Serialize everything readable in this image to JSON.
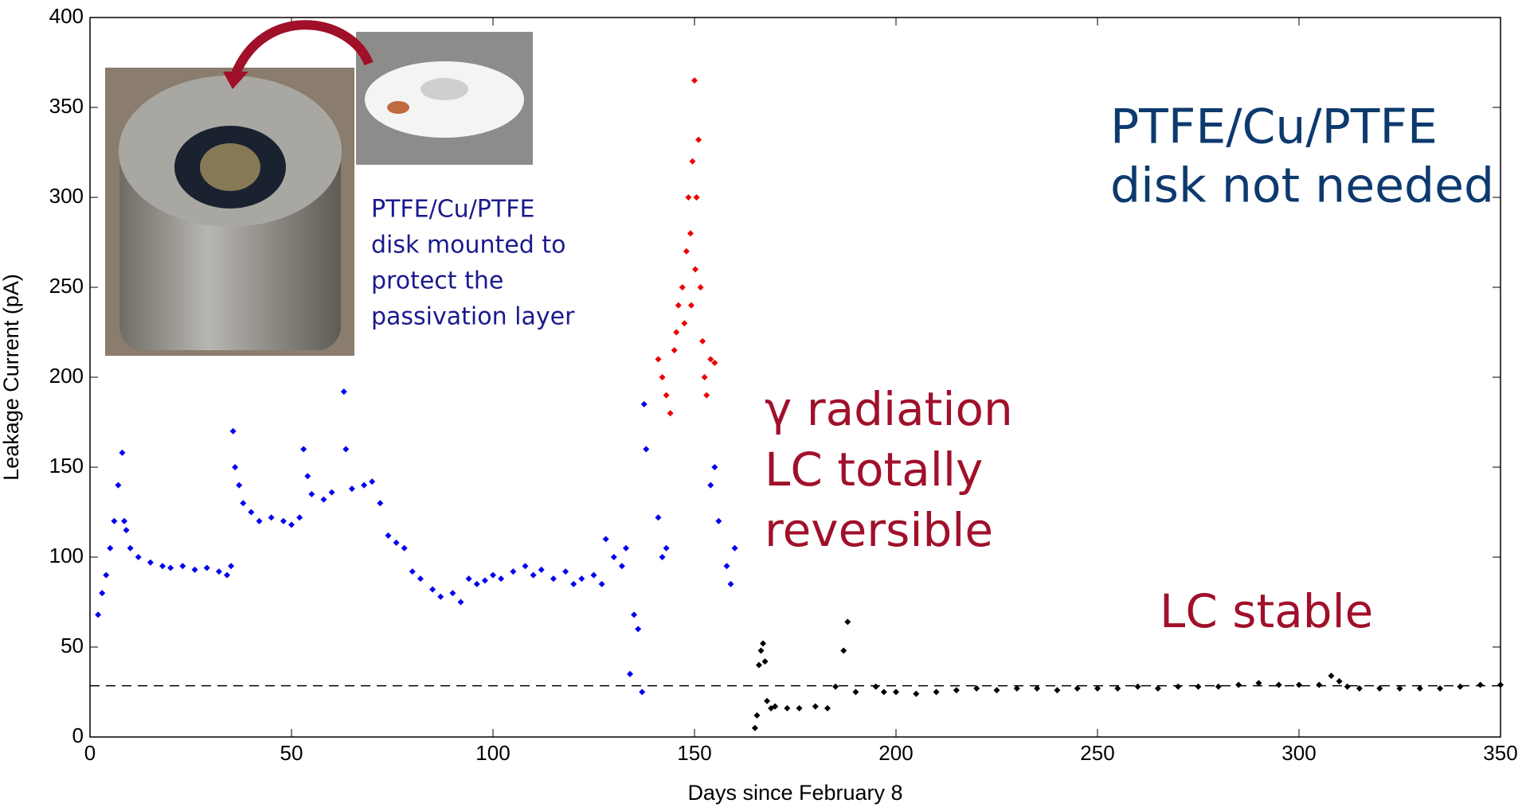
{
  "chart_data": {
    "type": "scatter",
    "xlabel": "Days since February 8",
    "ylabel": "Leakage Current (pA)",
    "xlim": [
      0,
      350
    ],
    "ylim": [
      0,
      400
    ],
    "xticks": [
      0,
      50,
      100,
      150,
      200,
      250,
      300,
      350
    ],
    "yticks": [
      0,
      50,
      100,
      150,
      200,
      250,
      300,
      350,
      400
    ],
    "reference_line": 28.5,
    "annotations": {
      "disk_mounted": [
        "PTFE/Cu/PTFE",
        "disk mounted to",
        "protect the",
        "passivation layer"
      ],
      "radiation": [
        "γ radiation",
        "LC totally",
        "reversible"
      ],
      "not_needed": [
        "PTFE/Cu/PTFE",
        "disk not needed"
      ],
      "stable": "LC stable"
    },
    "series": [
      {
        "color": "#0000ee",
        "x": [
          2,
          3,
          4,
          5,
          6,
          7,
          8,
          8.5,
          9,
          10,
          12,
          15,
          18,
          20,
          23,
          26,
          29,
          32,
          34,
          35,
          35.5,
          36,
          37,
          38,
          40,
          42,
          45,
          48,
          50,
          52,
          53,
          54,
          55,
          58,
          60,
          63,
          63.5,
          65,
          68,
          70,
          72,
          74,
          76,
          78,
          80,
          82,
          85,
          87,
          90,
          92,
          94,
          96,
          98,
          100,
          102,
          105,
          108,
          110,
          112,
          115,
          118,
          120,
          122,
          125,
          127,
          128,
          130,
          132,
          133,
          134,
          135,
          136,
          137,
          137.5,
          138,
          141,
          142,
          143,
          154,
          155,
          156,
          158,
          159,
          160
        ],
        "values": [
          68,
          80,
          90,
          105,
          120,
          140,
          158,
          120,
          115,
          105,
          100,
          97,
          95,
          94,
          95,
          93,
          94,
          92,
          90,
          95,
          170,
          150,
          140,
          130,
          125,
          120,
          122,
          120,
          118,
          122,
          160,
          145,
          135,
          132,
          136,
          192,
          160,
          138,
          140,
          142,
          130,
          112,
          108,
          105,
          92,
          88,
          82,
          78,
          80,
          75,
          88,
          85,
          87,
          90,
          88,
          92,
          95,
          90,
          93,
          88,
          92,
          85,
          88,
          90,
          85,
          110,
          100,
          95,
          105,
          35,
          68,
          60,
          25,
          185,
          160,
          122,
          100,
          105,
          140,
          150,
          120,
          95,
          85,
          105
        ]
      },
      {
        "color": "#ee0000",
        "x": [
          141,
          142,
          143,
          144,
          145,
          146,
          147,
          148,
          148.5,
          149,
          149.5,
          150,
          150.5,
          151,
          151.5,
          152,
          152.5,
          153,
          154,
          155,
          147.5,
          149.2,
          145.5,
          150.2
        ],
        "values": [
          210,
          200,
          190,
          180,
          215,
          240,
          250,
          270,
          300,
          280,
          320,
          365,
          300,
          332,
          250,
          220,
          200,
          190,
          210,
          208,
          230,
          240,
          225,
          260
        ]
      },
      {
        "color": "#000000",
        "x": [
          165,
          165.5,
          166,
          166.5,
          167,
          167.5,
          168,
          169,
          170,
          173,
          176,
          180,
          183,
          185,
          187,
          188,
          190,
          195,
          197,
          200,
          205,
          210,
          215,
          220,
          225,
          230,
          235,
          240,
          245,
          250,
          255,
          260,
          265,
          270,
          275,
          280,
          285,
          290,
          295,
          300,
          305,
          308,
          310,
          312,
          315,
          320,
          325,
          330,
          335,
          340,
          345,
          350
        ],
        "values": [
          5,
          12,
          40,
          48,
          52,
          42,
          20,
          16,
          17,
          16,
          16,
          17,
          16,
          28,
          48,
          64,
          25,
          28,
          25,
          25,
          24,
          25,
          26,
          27,
          26,
          27,
          27,
          26,
          27,
          27,
          27,
          28,
          27,
          28,
          28,
          28,
          29,
          30,
          29,
          29,
          29,
          34,
          31,
          28,
          27,
          27,
          27,
          27,
          27,
          28,
          29,
          29
        ]
      }
    ]
  }
}
